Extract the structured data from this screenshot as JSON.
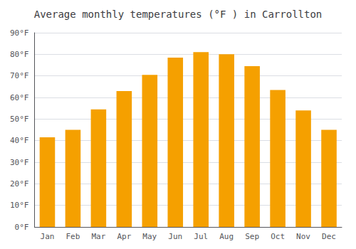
{
  "chart_data": {
    "type": "bar",
    "title": "Average monthly temperatures (°F ) in Carrollton",
    "categories": [
      "Jan",
      "Feb",
      "Mar",
      "Apr",
      "May",
      "Jun",
      "Jul",
      "Aug",
      "Sep",
      "Oct",
      "Nov",
      "Dec"
    ],
    "values": [
      41.5,
      45.0,
      54.5,
      63.0,
      70.5,
      78.5,
      81.0,
      80.0,
      74.5,
      63.5,
      54.0,
      45.0
    ],
    "color": "#F5A000",
    "ylim": [
      0,
      90
    ],
    "yticks": [
      {
        "value": 0,
        "label": "0°F"
      },
      {
        "value": 10,
        "label": "10°F"
      },
      {
        "value": 20,
        "label": "20°F"
      },
      {
        "value": 30,
        "label": "30°F"
      },
      {
        "value": 40,
        "label": "40°F"
      },
      {
        "value": 50,
        "label": "50°F"
      },
      {
        "value": 60,
        "label": "60°F"
      },
      {
        "value": 70,
        "label": "70°F"
      },
      {
        "value": 80,
        "label": "80°F"
      },
      {
        "value": 90,
        "label": "90°F"
      }
    ],
    "grid": true
  }
}
